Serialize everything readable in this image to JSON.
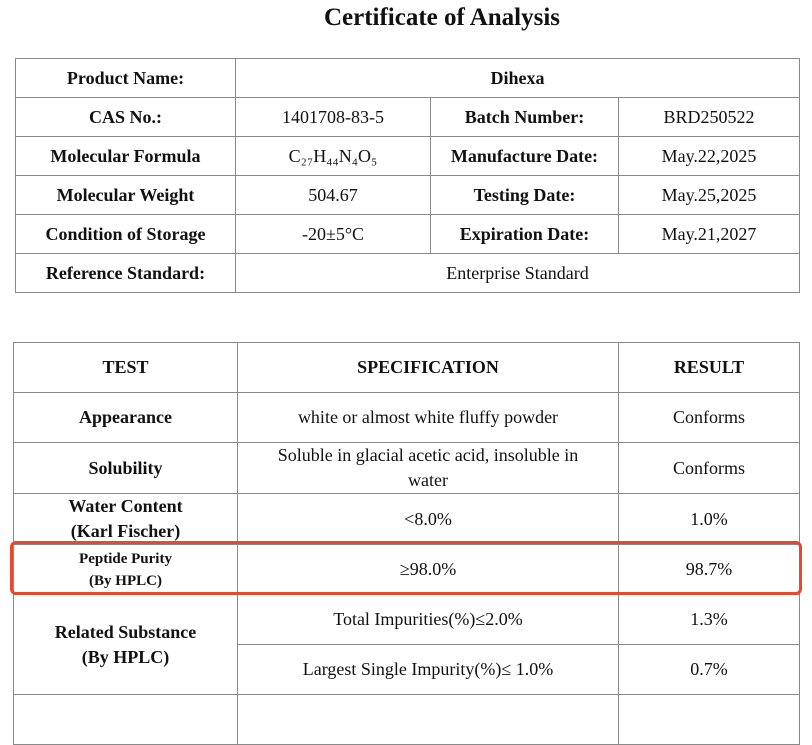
{
  "title": "Certificate of Analysis",
  "product_table": {
    "rows": [
      [
        "Product Name:",
        "Dihexa"
      ],
      [
        "CAS No.:",
        "1401708-83-5",
        "Batch Number:",
        "BRD250522"
      ],
      [
        "Molecular Formula",
        "C₂₇H₄₄N₄O₅",
        "Manufacture Date:",
        "May.22,2025"
      ],
      [
        "Molecular Weight",
        "504.67",
        "Testing Date:",
        "May.25,2025"
      ],
      [
        "Condition of Storage",
        "-20±5°C",
        "Expiration Date:",
        "May.21,2027"
      ],
      [
        "Reference Standard:",
        "Enterprise Standard"
      ]
    ]
  },
  "test_table": {
    "header": [
      "TEST",
      "SPECIFICATION",
      "RESULT"
    ],
    "rows": [
      [
        "Appearance",
        "white or almost white fluffy powder",
        "Conforms"
      ],
      [
        "Solubility",
        "Soluble in glacial acetic acid, insoluble in water",
        "Conforms"
      ],
      [
        "Water Content\n(Karl Fischer)",
        "<8.0%",
        "1.0%"
      ],
      [
        "Peptide Purity\n(By HPLC)",
        "≥98.0%",
        "98.7%"
      ]
    ],
    "related": {
      "test": "Related Substance\n(By HPLC)",
      "items": [
        [
          "Total Impurities(%)≤2.0%",
          "1.3%"
        ],
        [
          "Largest Single Impurity(%)≤ 1.0%",
          "0.7%"
        ]
      ]
    }
  }
}
